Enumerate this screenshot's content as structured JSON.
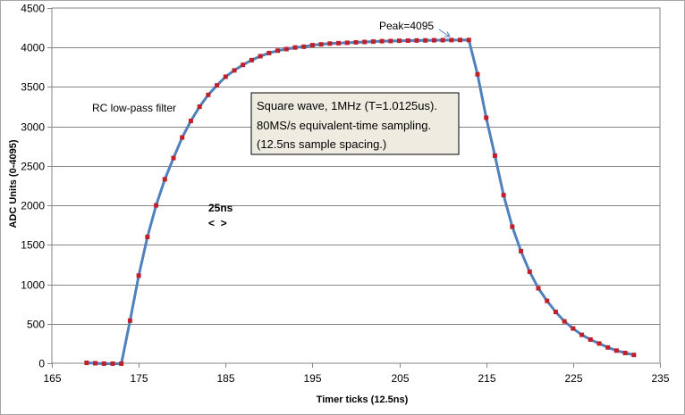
{
  "chart_data": {
    "type": "line",
    "title": "",
    "xlabel": "Timer ticks (12.5ns)",
    "ylabel": "ADC Units (0-4095)",
    "xlim": [
      165,
      235
    ],
    "ylim": [
      0,
      4500
    ],
    "x_ticks": [
      "165",
      "175",
      "185",
      "195",
      "205",
      "215",
      "225",
      "235"
    ],
    "y_ticks": [
      "0",
      "500",
      "1000",
      "1500",
      "2000",
      "2500",
      "3000",
      "3500",
      "4000",
      "4500"
    ],
    "grid": "horizontal",
    "legend": "none",
    "line_color": "#4f81bd",
    "marker_color": "#c0202a",
    "series": [
      {
        "x": [
          169,
          170,
          171,
          172,
          173,
          174,
          175,
          176,
          177,
          178,
          179,
          180,
          181,
          182,
          183,
          184,
          185,
          186,
          187,
          188,
          189,
          190,
          191,
          192,
          193,
          194,
          195,
          196,
          197,
          198,
          199,
          200,
          201,
          202,
          203,
          204,
          205,
          206,
          207,
          208,
          209,
          210,
          211,
          212,
          213,
          214,
          215,
          216,
          217,
          218,
          219,
          220,
          221,
          222,
          223,
          224,
          225,
          226,
          227,
          228,
          229,
          230,
          231,
          232
        ],
        "y": [
          5,
          0,
          -5,
          -5,
          -5,
          540,
          1110,
          1600,
          2000,
          2330,
          2600,
          2860,
          3070,
          3250,
          3400,
          3520,
          3630,
          3710,
          3780,
          3840,
          3890,
          3930,
          3960,
          3980,
          4000,
          4010,
          4030,
          4040,
          4050,
          4055,
          4060,
          4065,
          4070,
          4075,
          4080,
          4082,
          4085,
          4087,
          4089,
          4090,
          4092,
          4093,
          4094,
          4095,
          4095,
          3660,
          3110,
          2630,
          2130,
          1730,
          1420,
          1160,
          950,
          790,
          650,
          530,
          440,
          360,
          300,
          250,
          200,
          160,
          130,
          105
        ]
      }
    ],
    "annotations": {
      "peak": "Peak=4095",
      "filter": "RC low-pass filter",
      "box_line1": "Square wave, 1MHz (T=1.0125us).",
      "box_line2": "80MS/s equivalent-time sampling.",
      "box_line3": "(12.5ns sample spacing.)",
      "spacing_label": "25ns",
      "spacing_arrows": "<  >"
    }
  }
}
